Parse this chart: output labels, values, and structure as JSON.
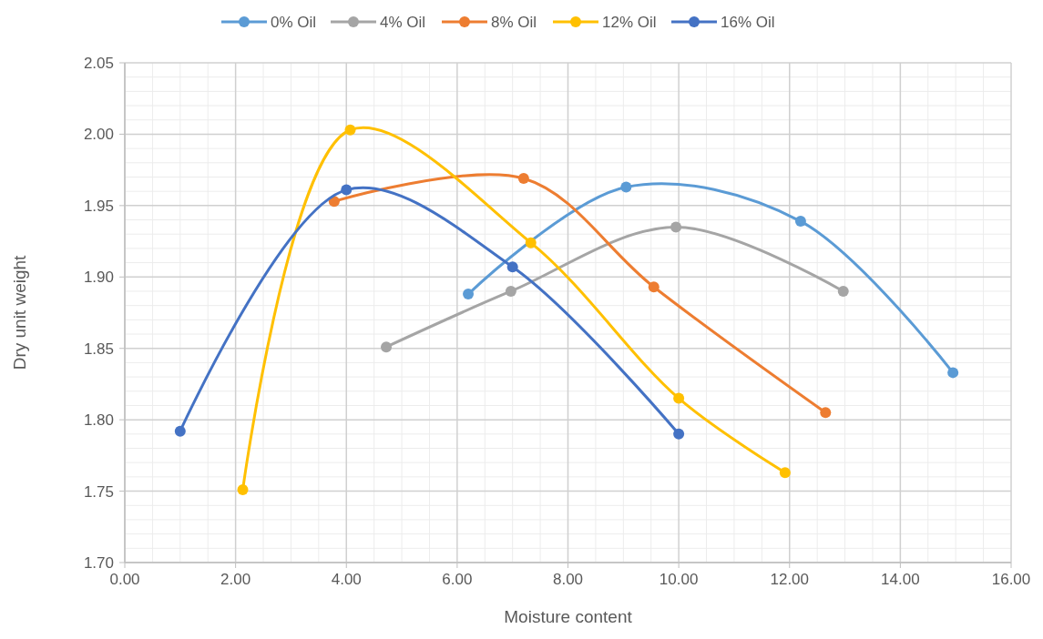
{
  "chart_data": {
    "type": "line",
    "xlabel": "Moisture content",
    "ylabel": "Dry unit weight",
    "xlim": [
      0,
      16
    ],
    "ylim": [
      1.7,
      2.05
    ],
    "xticks": [
      {
        "value": 0,
        "label": "0.00"
      },
      {
        "value": 2,
        "label": "2.00"
      },
      {
        "value": 4,
        "label": "4.00"
      },
      {
        "value": 6,
        "label": "6.00"
      },
      {
        "value": 8,
        "label": "8.00"
      },
      {
        "value": 10,
        "label": "10.00"
      },
      {
        "value": 12,
        "label": "12.00"
      },
      {
        "value": 14,
        "label": "14.00"
      },
      {
        "value": 16,
        "label": "16.00"
      }
    ],
    "yticks": [
      {
        "value": 1.7,
        "label": "1.70"
      },
      {
        "value": 1.75,
        "label": "1.75"
      },
      {
        "value": 1.8,
        "label": "1.80"
      },
      {
        "value": 1.85,
        "label": "1.85"
      },
      {
        "value": 1.9,
        "label": "1.90"
      },
      {
        "value": 1.95,
        "label": "1.95"
      },
      {
        "value": 2.0,
        "label": "2.00"
      },
      {
        "value": 2.05,
        "label": "2.05"
      }
    ],
    "grid": true,
    "legend": "top",
    "marker": "circle",
    "line_style": "solid",
    "series": [
      {
        "name": "0% Oil",
        "color": "#5b9bd5",
        "x": [
          6.2,
          9.05,
          12.2,
          14.95
        ],
        "values": [
          1.888,
          1.963,
          1.939,
          1.833
        ]
      },
      {
        "name": "4% Oil",
        "color": "#a5a5a5",
        "x": [
          4.72,
          6.97,
          9.95,
          12.97
        ],
        "values": [
          1.851,
          1.89,
          1.935,
          1.89
        ]
      },
      {
        "name": "8% Oil",
        "color": "#ed7d31",
        "x": [
          3.78,
          7.2,
          9.55,
          12.65
        ],
        "values": [
          1.953,
          1.969,
          1.893,
          1.805
        ]
      },
      {
        "name": "12% Oil",
        "color": "#ffc000",
        "x": [
          2.13,
          4.07,
          7.33,
          10.0,
          11.92
        ],
        "values": [
          1.751,
          2.003,
          1.924,
          1.815,
          1.763
        ]
      },
      {
        "name": "16% Oil",
        "color": "#4472c4",
        "x": [
          1.0,
          4.0,
          7.0,
          10.0
        ],
        "values": [
          1.792,
          1.961,
          1.907,
          1.79
        ]
      }
    ]
  }
}
